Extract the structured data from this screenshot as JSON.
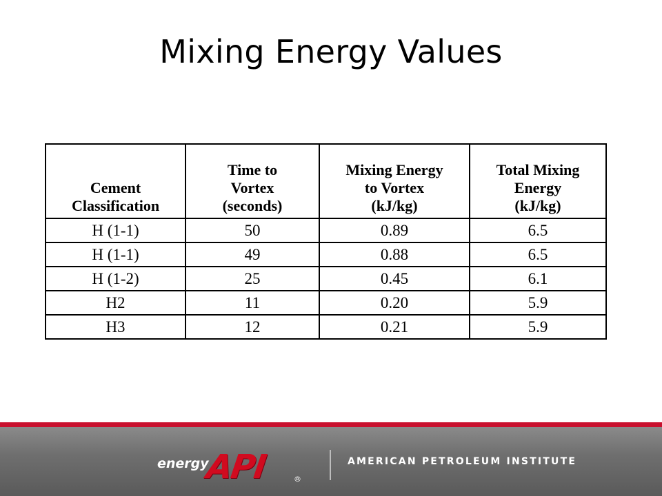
{
  "slide": {
    "title": "Mixing Energy Values"
  },
  "table": {
    "headers": [
      [
        "Cement",
        "Classification"
      ],
      [
        "Time to",
        "Vortex",
        "(seconds)"
      ],
      [
        "Mixing Energy",
        "to Vortex",
        "(kJ/kg)"
      ],
      [
        "Total Mixing",
        "Energy",
        "(kJ/kg)"
      ]
    ],
    "rows": [
      [
        "H (1-1)",
        "50",
        "0.89",
        "6.5"
      ],
      [
        "H (1-1)",
        "49",
        "0.88",
        "6.5"
      ],
      [
        "H (1-2)",
        "25",
        "0.45",
        "6.1"
      ],
      [
        "H2",
        "11",
        "0.20",
        "5.9"
      ],
      [
        "H3",
        "12",
        "0.21",
        "5.9"
      ]
    ]
  },
  "footer": {
    "energy_word": "energy",
    "logo_text": "API",
    "registered_mark": "®",
    "organization": "AMERICAN PETROLEUM INSTITUTE",
    "accent_color": "#c8102e"
  }
}
